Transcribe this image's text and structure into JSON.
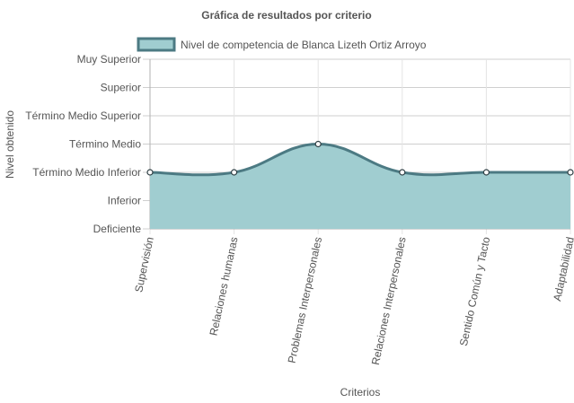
{
  "chart_data": {
    "type": "line",
    "title": "Gráfica de resultados por criterio",
    "xlabel": "Criterios",
    "ylabel": "Nivel obtenido",
    "y_levels": [
      "Deficiente",
      "Inferior",
      "Término Medio Inferior",
      "Término Medio",
      "Término Medio Superior",
      "Superior",
      "Muy Superior"
    ],
    "ylim": [
      1,
      7
    ],
    "categories": [
      "Supervisión",
      "Relaciones humanas",
      "Problemas Interpersonales",
      "Relaciones Interpersonales",
      "Sentido Común y Tacto",
      "Adaptabilidad"
    ],
    "series": [
      {
        "name": "Nivel de competencia de Blanca Lizeth Ortiz Arroyo",
        "values": [
          3,
          3,
          4,
          3,
          3,
          3
        ],
        "fill": "#a0cdd0",
        "stroke": "#4c7a83"
      }
    ],
    "grid": true,
    "legend": "top"
  }
}
